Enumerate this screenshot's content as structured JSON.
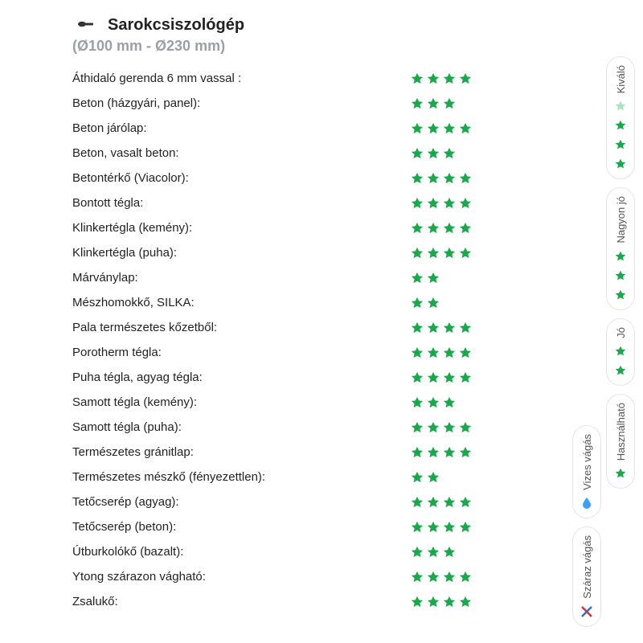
{
  "colors": {
    "star_fill": "#18a94a",
    "star_faded": "#a9e4bd",
    "text": "#222222",
    "subtitle": "#9aa0a6",
    "border": "#e3e5e8",
    "red": "#d33333",
    "blue": "#2a6fd6",
    "droplet": "#3aa0ff"
  },
  "header": {
    "title": "Sarokcsiszológép",
    "subtitle": "(Ø100 mm - Ø230 mm)"
  },
  "rows": [
    {
      "label": "Áthidaló gerenda 6 mm vassal :",
      "stars": 4
    },
    {
      "label": "Beton (házgyári, panel):",
      "stars": 3
    },
    {
      "label": "Beton járólap:",
      "stars": 4
    },
    {
      "label": "Beton, vasalt beton:",
      "stars": 3
    },
    {
      "label": "Betontérkő (Viacolor):",
      "stars": 4
    },
    {
      "label": "Bontott tégla:",
      "stars": 4
    },
    {
      "label": "Klinkertégla (kemény):",
      "stars": 4
    },
    {
      "label": "Klinkertégla (puha):",
      "stars": 4
    },
    {
      "label": "Márványlap:",
      "stars": 2
    },
    {
      "label": "Mészhomokkő, SILKA:",
      "stars": 2
    },
    {
      "label": "Pala természetes kőzetből:",
      "stars": 4
    },
    {
      "label": "Porotherm tégla:",
      "stars": 4
    },
    {
      "label": "Puha tégla, agyag tégla:",
      "stars": 4
    },
    {
      "label": "Samott tégla (kemény):",
      "stars": 3
    },
    {
      "label": "Samott tégla (puha):",
      "stars": 4
    },
    {
      "label": "Természetes gránitlap:",
      "stars": 4
    },
    {
      "label": "Természetes mészkő (fényezettlen):",
      "stars": 2
    },
    {
      "label": "Tetőcserép (agyag):",
      "stars": 4
    },
    {
      "label": "Tetőcserép (beton):",
      "stars": 4
    },
    {
      "label": "Útburkolókő (bazalt):",
      "stars": 3
    },
    {
      "label": "Ytong szárazon vágható:",
      "stars": 4
    },
    {
      "label": "Zsalukő:",
      "stars": 4
    }
  ],
  "legend_right": [
    {
      "label": "Kiváló",
      "stars": 4,
      "faded_first": true
    },
    {
      "label": "Nagyon jó",
      "stars": 3
    },
    {
      "label": "Jó",
      "stars": 2
    },
    {
      "label": "Használható",
      "stars": 1
    }
  ],
  "legend_secondary": [
    {
      "label": "Vizes vágás",
      "icon": "droplet"
    },
    {
      "label": "Száraz vágás",
      "icon": "cross"
    }
  ]
}
